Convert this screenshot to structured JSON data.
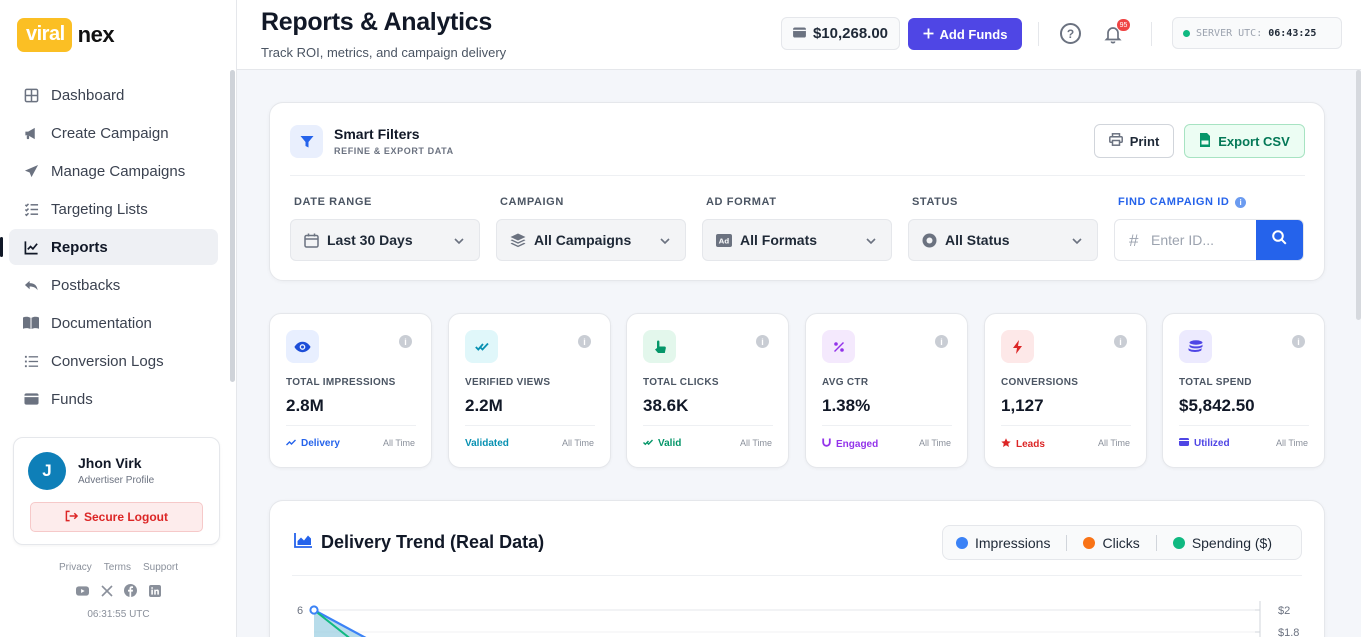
{
  "brand": {
    "part1": "viral",
    "part2": "nex"
  },
  "sidebar": {
    "items": [
      {
        "label": "Dashboard",
        "icon": "grid-icon"
      },
      {
        "label": "Create Campaign",
        "icon": "megaphone-icon"
      },
      {
        "label": "Manage Campaigns",
        "icon": "paper-plane-icon"
      },
      {
        "label": "Targeting Lists",
        "icon": "list-check-icon"
      },
      {
        "label": "Reports",
        "icon": "chart-line-icon",
        "active": true
      },
      {
        "label": "Postbacks",
        "icon": "reply-icon"
      },
      {
        "label": "Documentation",
        "icon": "book-icon"
      },
      {
        "label": "Conversion Logs",
        "icon": "list-icon"
      },
      {
        "label": "Funds",
        "icon": "wallet-icon"
      }
    ],
    "profile": {
      "initial": "J",
      "name": "Jhon Virk",
      "role": "Advertiser Profile",
      "logout": "Secure Logout"
    },
    "footer_links": [
      "Privacy",
      "Terms",
      "Support"
    ],
    "footer_time": "06:31:55 UTC"
  },
  "header": {
    "title": "Reports & Analytics",
    "subtitle": "Track ROI, metrics, and campaign delivery",
    "balance": "$10,268.00",
    "add_funds": "Add Funds",
    "notification_count": "95",
    "server_label": "SERVER UTC:",
    "server_time": "06:43:25"
  },
  "filters": {
    "title": "Smart Filters",
    "subtitle": "REFINE & EXPORT DATA",
    "print": "Print",
    "export": "Export CSV",
    "date_range": {
      "label": "DATE RANGE",
      "value": "Last 30 Days"
    },
    "campaign": {
      "label": "CAMPAIGN",
      "value": "All Campaigns"
    },
    "ad_format": {
      "label": "AD FORMAT",
      "value": "All Formats"
    },
    "status": {
      "label": "STATUS",
      "value": "All Status"
    },
    "find": {
      "label": "FIND CAMPAIGN ID",
      "placeholder": "Enter ID..."
    }
  },
  "stats": [
    {
      "label": "TOTAL IMPRESSIONS",
      "value": "2.8M",
      "tag": "Delivery",
      "time": "All Time",
      "color": "#2563eb",
      "bg": "#e8efff",
      "icon": "eye-icon"
    },
    {
      "label": "VERIFIED VIEWS",
      "value": "2.2M",
      "tag": "Validated",
      "time": "All Time",
      "color": "#0891b2",
      "bg": "#e0f7fa",
      "icon": "check-double-icon"
    },
    {
      "label": "TOTAL CLICKS",
      "value": "38.6K",
      "tag": "Valid",
      "time": "All Time",
      "color": "#059669",
      "bg": "#e3f7ec",
      "icon": "pointer-icon"
    },
    {
      "label": "AVG CTR",
      "value": "1.38%",
      "tag": "Engaged",
      "time": "All Time",
      "color": "#9333ea",
      "bg": "#f4e9fd",
      "icon": "percent-icon"
    },
    {
      "label": "CONVERSIONS",
      "value": "1,127",
      "tag": "Leads",
      "time": "All Time",
      "color": "#dc2626",
      "bg": "#fde8e8",
      "icon": "bolt-icon"
    },
    {
      "label": "TOTAL SPEND",
      "value": "$5,842.50",
      "tag": "Utilized",
      "time": "All Time",
      "color": "#4f46e5",
      "bg": "#eceafe",
      "icon": "coins-icon"
    }
  ],
  "chart": {
    "title": "Delivery Trend (Real Data)",
    "legend": [
      {
        "name": "Impressions",
        "color": "#3b82f6"
      },
      {
        "name": "Clicks",
        "color": "#f97316"
      },
      {
        "name": "Spending ($)",
        "color": "#10b981"
      }
    ]
  },
  "chart_data": {
    "type": "line",
    "title": "Delivery Trend (Real Data)",
    "y_left_ticks": [
      "6"
    ],
    "y_right_ticks": [
      "$2",
      "$1.8"
    ],
    "series": [
      {
        "name": "Impressions",
        "values": [
          6
        ]
      },
      {
        "name": "Clicks",
        "values": []
      },
      {
        "name": "Spending ($)",
        "values": [
          2
        ]
      }
    ]
  }
}
